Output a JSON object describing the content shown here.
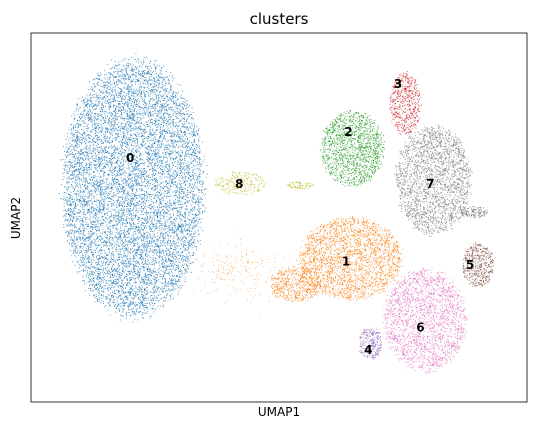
{
  "chart_data": {
    "type": "scatter",
    "title": "clusters",
    "xlabel": "UMAP1",
    "ylabel": "UMAP2",
    "grid": false,
    "legend": "on data",
    "xlim": [
      0,
      100
    ],
    "ylim": [
      0,
      100
    ],
    "clusters": [
      {
        "name": "0",
        "color": "#1f77b4",
        "center": [
          20,
          66
        ],
        "label_at": [
          20,
          66
        ]
      },
      {
        "name": "1",
        "color": "#ff7f0e",
        "center": [
          63,
          40
        ],
        "label_at": [
          63.5,
          38
        ]
      },
      {
        "name": "2",
        "color": "#2ca02c",
        "center": [
          64,
          74
        ],
        "label_at": [
          64,
          73
        ]
      },
      {
        "name": "3",
        "color": "#d62728",
        "center": [
          74,
          87
        ],
        "label_at": [
          74,
          86
        ]
      },
      {
        "name": "4",
        "color": "#9467bd",
        "center": [
          68,
          14
        ],
        "label_at": [
          68,
          14
        ]
      },
      {
        "name": "5",
        "color": "#8c564b",
        "center": [
          89,
          37
        ],
        "label_at": [
          88.5,
          37
        ]
      },
      {
        "name": "6",
        "color": "#e377c2",
        "center": [
          79,
          21
        ],
        "label_at": [
          78.5,
          20
        ]
      },
      {
        "name": "7",
        "color": "#7f7f7f",
        "center": [
          81,
          61
        ],
        "label_at": [
          80.5,
          59
        ]
      },
      {
        "name": "8",
        "color": "#bcbd22",
        "center": [
          44,
          59
        ],
        "label_at": [
          42,
          59
        ]
      }
    ]
  }
}
